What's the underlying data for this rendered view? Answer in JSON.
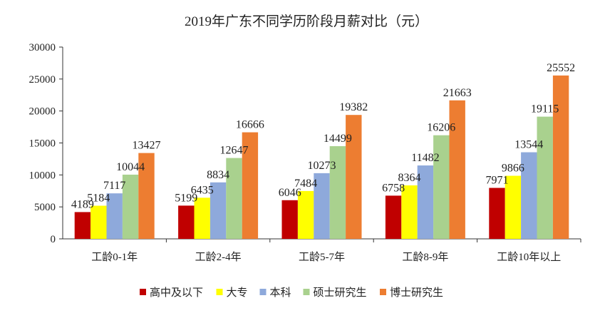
{
  "chart_data": {
    "type": "bar",
    "title": "2019年广东不同学历阶段月薪对比（元）",
    "xlabel": "",
    "ylabel": "",
    "ylim": [
      0,
      30000
    ],
    "yticks": [
      0,
      5000,
      10000,
      15000,
      20000,
      25000,
      30000
    ],
    "grid": false,
    "legend_position": "bottom",
    "categories": [
      "工龄0-1年",
      "工龄2-4年",
      "工龄5-7年",
      "工龄8-9年",
      "工龄10年以上"
    ],
    "series": [
      {
        "name": "高中及以下",
        "color": "#C00000",
        "values": [
          4189,
          5199,
          6046,
          6758,
          7971
        ]
      },
      {
        "name": "大专",
        "color": "#FFFF00",
        "values": [
          5184,
          6435,
          7484,
          8364,
          9866
        ]
      },
      {
        "name": "本科",
        "color": "#8EA9DB",
        "values": [
          7117,
          8834,
          10273,
          11482,
          13544
        ]
      },
      {
        "name": "硕士研究生",
        "color": "#A9D18E",
        "values": [
          10044,
          12647,
          14499,
          16206,
          19115
        ]
      },
      {
        "name": "博士研究生",
        "color": "#ED7D31",
        "values": [
          13427,
          16666,
          19382,
          21663,
          25552
        ]
      }
    ]
  }
}
